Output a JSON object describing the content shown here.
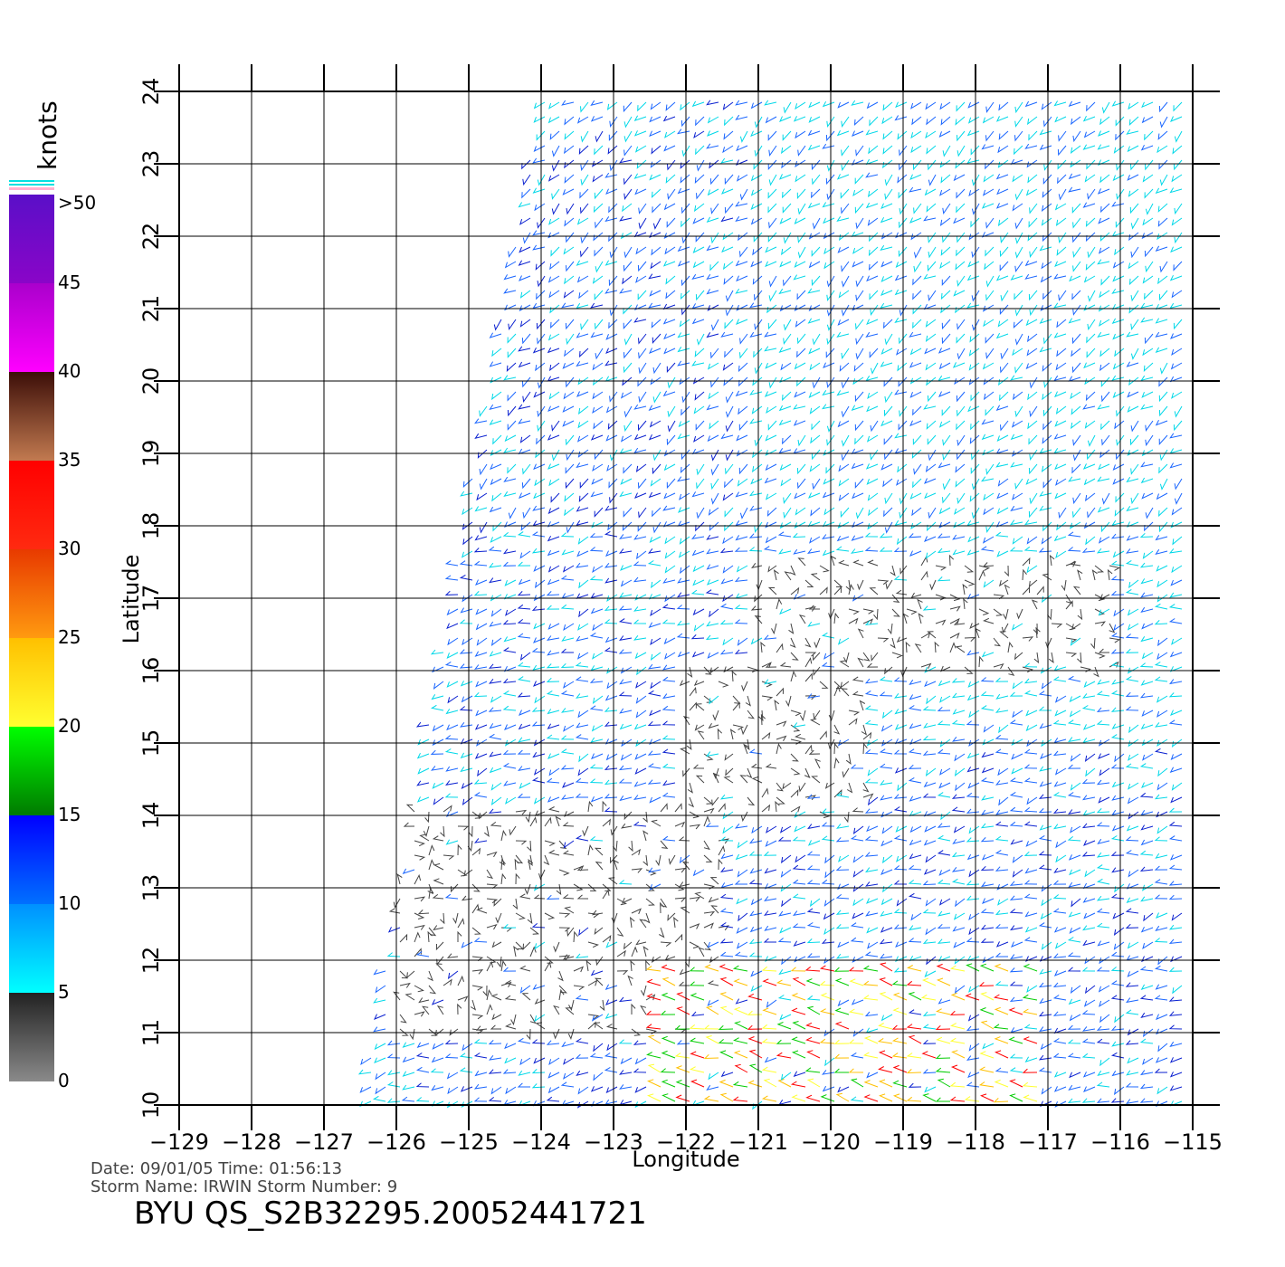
{
  "colorbar": {
    "unit_label": "knots",
    "tick_labels": [
      ">50",
      "45",
      "40",
      "35",
      "30",
      "25",
      "20",
      "15",
      "10",
      "5",
      "0"
    ],
    "segments": [
      {
        "from": 45,
        "to": 50,
        "top": "#5a0fc8",
        "bottom": "#8a05c8"
      },
      {
        "from": 40,
        "to": 45,
        "top": "#aa00cc",
        "bottom": "#ff00ff"
      },
      {
        "from": 35,
        "to": 40,
        "top": "#3c0e08",
        "bottom": "#c27a50"
      },
      {
        "from": 30,
        "to": 35,
        "top": "#ff0000",
        "bottom": "#ff2a10"
      },
      {
        "from": 25,
        "to": 30,
        "top": "#e83a00",
        "bottom": "#ff9a10"
      },
      {
        "from": 20,
        "to": 25,
        "top": "#ffc000",
        "bottom": "#ffff30"
      },
      {
        "from": 15,
        "to": 20,
        "top": "#00ff00",
        "bottom": "#007a00"
      },
      {
        "from": 10,
        "to": 15,
        "top": "#0000ff",
        "bottom": "#0070ff"
      },
      {
        "from": 5,
        "to": 10,
        "top": "#0090ff",
        "bottom": "#00ffff"
      },
      {
        "from": 0,
        "to": 5,
        "top": "#222222",
        "bottom": "#8a8a8a"
      }
    ]
  },
  "axes": {
    "xlabel": "Longitude",
    "ylabel": "Latitude",
    "x_ticks": [
      -129,
      -128,
      -127,
      -126,
      -125,
      -124,
      -123,
      -122,
      -121,
      -120,
      -119,
      -118,
      -117,
      -116,
      -115
    ],
    "x_tick_labels": [
      "−129",
      "−128",
      "−127",
      "−126",
      "−125",
      "−124",
      "−123",
      "−122",
      "−121",
      "−120",
      "−119",
      "−118",
      "−117",
      "−116",
      "−115"
    ],
    "y_ticks": [
      10,
      11,
      12,
      13,
      14,
      15,
      16,
      17,
      18,
      19,
      20,
      21,
      22,
      23,
      24
    ],
    "y_tick_labels": [
      "10",
      "11",
      "12",
      "13",
      "14",
      "15",
      "16",
      "17",
      "18",
      "19",
      "20",
      "21",
      "22",
      "23",
      "24"
    ],
    "lon_range": [
      -129,
      -115
    ],
    "lat_range": [
      10,
      24
    ],
    "grid": true
  },
  "swath": {
    "corners_lonlat": [
      [
        -126.5,
        10.0
      ],
      [
        -124.0,
        24.0
      ],
      [
        -114.9,
        24.0
      ],
      [
        -114.9,
        10.0
      ]
    ],
    "low_wind_regions": [
      {
        "lon_range": [
          -126.0,
          -121.5
        ],
        "lat_range": [
          11.0,
          14.2
        ]
      },
      {
        "lon_range": [
          -122.0,
          -119.5
        ],
        "lat_range": [
          14.0,
          16.2
        ]
      },
      {
        "lon_range": [
          -121.0,
          -116.0
        ],
        "lat_range": [
          16.0,
          17.5
        ]
      }
    ],
    "high_wind_region": {
      "lon_range": [
        -123.0,
        -117.0
      ],
      "lat_range": [
        10.0,
        12.0
      ],
      "colors": [
        "#ff0000",
        "#ffc000",
        "#00cc00",
        "#ffff30"
      ]
    },
    "vector_colors": {
      "light": "#00d8e8",
      "medium": "#1a66ff",
      "strong": "#0a20d0",
      "calm": "#444444"
    }
  },
  "footer": {
    "date_line": "Date: 09/01/05   Time: 01:56:13",
    "storm_line": "Storm  Name: IRWIN   Storm  Number: 9",
    "product_id": "BYU  QS_S2B32295.20052441721"
  }
}
